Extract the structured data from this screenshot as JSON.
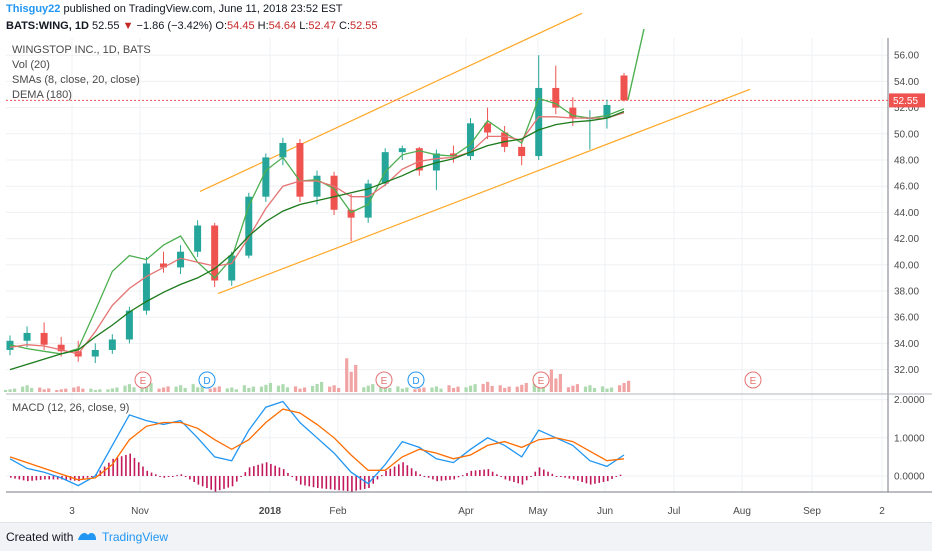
{
  "header": {
    "user": "Thisguy22",
    "published": "published on TradingView.com, June 11, 2018 23:52 EST",
    "symbol": "BATS:WING, 1D",
    "last": "52.55",
    "change": "−1.86 (−3.42%)",
    "o_label": "O:",
    "o_value": "54.45",
    "h_label": "H:",
    "h_value": "54.64",
    "l_label": "L:",
    "l_value": "52.47",
    "c_label": "C:",
    "c_value": "52.55"
  },
  "overlays": {
    "title": "WINGSTOP INC., 1D, BATS",
    "vol": "Vol (20)",
    "sma": "SMAs (8, close, 20, close)",
    "dema": "DEMA (180)",
    "macd": "MACD (12, 26, close, 9)"
  },
  "footer": {
    "created": "Created with",
    "brand": "TradingView"
  },
  "colors": {
    "up": "#26a69a",
    "down": "#ef5350",
    "sma8": "#4caf50",
    "sma20": "#e57373",
    "dema": "#1b7a1b",
    "channel": "#ffa726",
    "macd": "#2196f3",
    "signal": "#ff6d00",
    "hist": "#c2185b",
    "last_bg": "#ef5350",
    "earnings": "#e57373",
    "dividend": "#2196f3"
  },
  "chart_data": [
    {
      "type": "candlestick",
      "title": "WINGSTOP INC., 1D, BATS",
      "x_ticks": [
        "3",
        "Nov",
        "2018",
        "Feb",
        "Apr",
        "May",
        "Jun",
        "Jul",
        "Aug",
        "Sep",
        "2"
      ],
      "y_ticks": [
        "32.00",
        "34.00",
        "36.00",
        "38.00",
        "40.00",
        "42.00",
        "44.00",
        "46.00",
        "48.00",
        "50.00",
        "52.00",
        "54.00",
        "56.00"
      ],
      "ylim": [
        31,
        57
      ],
      "last_price": 52.55,
      "series": [
        {
          "name": "SMA 8",
          "color": "#4caf50",
          "values": [
            33.9,
            33.6,
            33.4,
            33.2,
            33.6,
            36.5,
            39.5,
            40.7,
            40.4,
            41.5,
            42.2,
            40.2,
            39.0,
            40.5,
            44.5,
            47.2,
            48.2,
            46.4,
            46.5,
            45.8,
            44.0,
            44.6,
            47.1,
            48.4,
            48.7,
            48.4,
            48.3,
            49.2,
            51.0,
            50.1,
            49.3,
            52.7,
            52.3,
            51.4,
            51.2,
            51.4,
            51.9
          ]
        },
        {
          "name": "SMA 20",
          "color": "#e57373",
          "values": [
            33.7,
            33.9,
            33.8,
            33.5,
            33.2,
            34.9,
            36.9,
            38.2,
            39.1,
            39.8,
            40.5,
            40.2,
            39.9,
            40.1,
            42.1,
            44.3,
            46.0,
            46.4,
            46.4,
            46.0,
            45.2,
            45.2,
            46.1,
            47.3,
            47.9,
            48.1,
            48.2,
            48.6,
            49.8,
            49.8,
            49.5,
            51.3,
            51.3,
            51.2,
            51.2,
            51.2,
            51.6
          ]
        },
        {
          "name": "DEMA 180",
          "color": "#1b7a1b",
          "values": [
            32.0,
            32.4,
            32.8,
            33.2,
            33.5,
            34.5,
            35.4,
            36.4,
            37.2,
            37.9,
            38.5,
            39.0,
            39.7,
            40.8,
            42.2,
            43.3,
            44.1,
            44.6,
            44.9,
            45.2,
            45.5,
            45.8,
            46.3,
            46.8,
            47.4,
            47.8,
            48.1,
            48.6,
            49.1,
            49.4,
            49.6,
            50.3,
            50.7,
            50.9,
            51.0,
            51.2,
            51.7
          ]
        }
      ],
      "candles_sample": [
        {
          "o": 33.5,
          "h": 34.6,
          "l": 33.1,
          "c": 34.2
        },
        {
          "o": 34.2,
          "h": 35.3,
          "l": 33.7,
          "c": 34.8
        },
        {
          "o": 34.8,
          "h": 35.6,
          "l": 33.5,
          "c": 33.9
        },
        {
          "o": 33.9,
          "h": 34.5,
          "l": 33.0,
          "c": 33.4
        },
        {
          "o": 33.4,
          "h": 34.2,
          "l": 32.6,
          "c": 33.0
        },
        {
          "o": 33.0,
          "h": 34.0,
          "l": 32.5,
          "c": 33.5
        },
        {
          "o": 33.5,
          "h": 34.7,
          "l": 33.2,
          "c": 34.3
        },
        {
          "o": 34.3,
          "h": 36.8,
          "l": 34.0,
          "c": 36.5
        },
        {
          "o": 36.5,
          "h": 40.6,
          "l": 36.2,
          "c": 40.1
        },
        {
          "o": 40.1,
          "h": 41.0,
          "l": 39.4,
          "c": 39.8
        },
        {
          "o": 39.8,
          "h": 41.5,
          "l": 39.3,
          "c": 41.0
        },
        {
          "o": 41.0,
          "h": 43.4,
          "l": 40.6,
          "c": 43.0
        },
        {
          "o": 43.0,
          "h": 43.2,
          "l": 38.3,
          "c": 38.8
        },
        {
          "o": 38.8,
          "h": 41.0,
          "l": 38.4,
          "c": 40.7
        },
        {
          "o": 40.7,
          "h": 45.5,
          "l": 40.5,
          "c": 45.2
        },
        {
          "o": 45.2,
          "h": 48.5,
          "l": 44.8,
          "c": 48.2
        },
        {
          "o": 48.2,
          "h": 49.7,
          "l": 47.6,
          "c": 49.3
        },
        {
          "o": 49.3,
          "h": 49.6,
          "l": 44.8,
          "c": 45.2
        },
        {
          "o": 45.2,
          "h": 47.2,
          "l": 44.6,
          "c": 46.8
        },
        {
          "o": 46.8,
          "h": 47.1,
          "l": 43.8,
          "c": 44.2
        },
        {
          "o": 44.2,
          "h": 45.4,
          "l": 41.8,
          "c": 43.6
        },
        {
          "o": 43.6,
          "h": 46.5,
          "l": 43.2,
          "c": 46.2
        },
        {
          "o": 46.2,
          "h": 48.9,
          "l": 46.0,
          "c": 48.6
        },
        {
          "o": 48.6,
          "h": 49.1,
          "l": 48.0,
          "c": 48.9
        },
        {
          "o": 48.9,
          "h": 49.0,
          "l": 46.8,
          "c": 47.2
        },
        {
          "o": 47.2,
          "h": 48.8,
          "l": 45.7,
          "c": 48.5
        },
        {
          "o": 48.5,
          "h": 49.1,
          "l": 47.8,
          "c": 48.3
        },
        {
          "o": 48.3,
          "h": 51.2,
          "l": 48.0,
          "c": 50.8
        },
        {
          "o": 50.8,
          "h": 52.0,
          "l": 49.6,
          "c": 50.1
        },
        {
          "o": 50.1,
          "h": 50.6,
          "l": 48.6,
          "c": 49.0
        },
        {
          "o": 49.0,
          "h": 49.5,
          "l": 47.6,
          "c": 48.3
        },
        {
          "o": 48.3,
          "h": 56.0,
          "l": 48.0,
          "c": 53.5
        },
        {
          "o": 53.5,
          "h": 55.2,
          "l": 51.5,
          "c": 52.0
        },
        {
          "o": 52.0,
          "h": 52.8,
          "l": 50.6,
          "c": 51.2
        },
        {
          "o": 51.2,
          "h": 51.8,
          "l": 48.8,
          "c": 51.2
        },
        {
          "o": 51.2,
          "h": 52.6,
          "l": 50.4,
          "c": 52.2
        },
        {
          "o": 54.45,
          "h": 54.64,
          "l": 52.47,
          "c": 52.55
        }
      ],
      "volume_relative": [
        0.3,
        0.6,
        0.4,
        0.3,
        0.5,
        0.3,
        0.4,
        0.7,
        1.0,
        0.5,
        0.6,
        0.7,
        0.5,
        0.4,
        0.6,
        0.8,
        0.7,
        0.5,
        0.9,
        0.6,
        3.0,
        0.7,
        0.6,
        0.5,
        0.4,
        0.5,
        0.6,
        0.7,
        0.9,
        0.6,
        0.8,
        1.0,
        2.0,
        0.7,
        0.6,
        0.5,
        1.0
      ],
      "events": [
        "E",
        "D",
        "E",
        "D",
        "E",
        "E"
      ]
    },
    {
      "type": "line",
      "title": "MACD (12, 26, close, 9)",
      "y_ticks": [
        "0.0000",
        "1.0000",
        "2.0000"
      ],
      "ylim": [
        -0.45,
        2.1
      ],
      "series": [
        {
          "name": "MACD",
          "color": "#2196f3",
          "values": [
            0.45,
            0.2,
            0.1,
            -0.05,
            -0.25,
            0.0,
            0.8,
            1.6,
            1.45,
            1.35,
            1.45,
            1.0,
            0.5,
            0.4,
            1.2,
            1.8,
            1.95,
            1.4,
            1.0,
            0.6,
            0.1,
            -0.2,
            0.3,
            0.9,
            0.75,
            0.45,
            0.35,
            0.7,
            1.0,
            0.8,
            0.5,
            1.2,
            1.0,
            0.8,
            0.4,
            0.25,
            0.55
          ]
        },
        {
          "name": "Signal",
          "color": "#ff6d00",
          "values": [
            0.5,
            0.35,
            0.2,
            0.05,
            -0.1,
            -0.05,
            0.3,
            0.95,
            1.3,
            1.4,
            1.4,
            1.25,
            0.95,
            0.7,
            0.95,
            1.4,
            1.75,
            1.65,
            1.35,
            1.0,
            0.55,
            0.15,
            0.15,
            0.5,
            0.7,
            0.6,
            0.45,
            0.55,
            0.8,
            0.9,
            0.75,
            0.95,
            1.0,
            0.9,
            0.65,
            0.4,
            0.45
          ]
        }
      ]
    }
  ]
}
